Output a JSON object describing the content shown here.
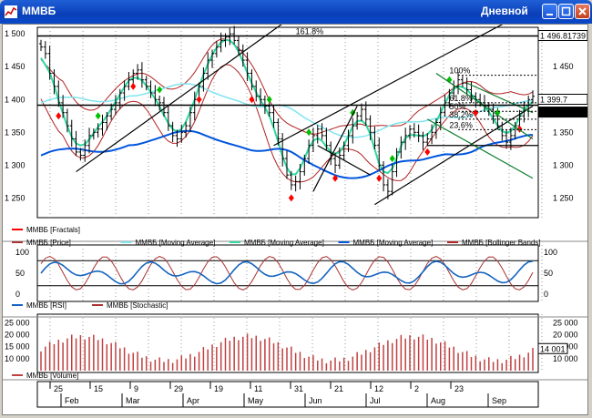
{
  "window": {
    "title": "ММВБ",
    "mode": "Дневной"
  },
  "colors": {
    "price": "#000000",
    "fractal": "#ff0000",
    "fractal_up": "#00c000",
    "ma_cyan": "#7fe5ef",
    "ma_green": "#2fd9a0",
    "ma_blue": "#0055dd",
    "bollinger": "#b22222",
    "stoch": "#a83232",
    "rsi": "#1565c0",
    "volume": "#c04040",
    "trend_black": "#000000",
    "channel_green": "#0b7d2b"
  },
  "chart_data": [
    {
      "type": "candlestick",
      "panel": "price",
      "ylim": [
        1220,
        1510
      ],
      "y_ticks": [
        {
          "label": "1 500",
          "value": 1500
        },
        {
          "label": "1 450",
          "value": 1450
        },
        {
          "label": "1 400",
          "value": 1400
        },
        {
          "label": "1 350",
          "value": 1350
        },
        {
          "label": "1 300",
          "value": 1300
        },
        {
          "label": "1 250",
          "value": 1250
        }
      ],
      "price_close": [
        1480,
        1470,
        1440,
        1420,
        1395,
        1380,
        1360,
        1340,
        1320,
        1315,
        1330,
        1345,
        1350,
        1355,
        1365,
        1375,
        1385,
        1395,
        1410,
        1420,
        1430,
        1440,
        1445,
        1430,
        1420,
        1410,
        1400,
        1395,
        1380,
        1360,
        1345,
        1340,
        1350,
        1360,
        1380,
        1400,
        1420,
        1440,
        1460,
        1470,
        1480,
        1490,
        1495,
        1500,
        1490,
        1475,
        1460,
        1440,
        1420,
        1405,
        1400,
        1390,
        1380,
        1365,
        1340,
        1310,
        1285,
        1270,
        1275,
        1290,
        1310,
        1330,
        1345,
        1355,
        1345,
        1330,
        1310,
        1300,
        1315,
        1330,
        1345,
        1360,
        1375,
        1385,
        1370,
        1350,
        1330,
        1300,
        1270,
        1260,
        1290,
        1320,
        1335,
        1345,
        1355,
        1350,
        1345,
        1335,
        1340,
        1350,
        1365,
        1380,
        1395,
        1410,
        1420,
        1430,
        1425,
        1415,
        1405,
        1400,
        1395,
        1390,
        1385,
        1375,
        1360,
        1345,
        1335,
        1345,
        1360,
        1375,
        1385,
        1400,
        1405
      ],
      "right_labels": [
        {
          "label": "1 496.81739",
          "value": 1496.8
        },
        {
          "label": "1 399.7",
          "value": 1399.7
        },
        {
          "label": "1 391.29851",
          "value": 1391.3
        }
      ],
      "levels": [
        {
          "label": "161.8%",
          "value": 1496.8
        },
        {
          "label": "100%",
          "value": 1437
        },
        {
          "label": "61.8%",
          "value": 1395
        },
        {
          "label": "50%",
          "value": 1382
        },
        {
          "label": "38.2%",
          "value": 1370
        },
        {
          "label": "23.6%",
          "value": 1354
        }
      ],
      "legend": [
        "ММВБ [Fractals]",
        "ММВБ [Price]",
        "ММВБ [Moving Average]",
        "ММВБ [Moving Average]",
        "ММВБ [Moving Average]",
        "ММВБ [Bollinger Bands]"
      ]
    },
    {
      "type": "line",
      "panel": "oscillators",
      "ylim": [
        0,
        100
      ],
      "y_ticks": [
        {
          "label": "100",
          "value": 100
        },
        {
          "label": "50",
          "value": 50
        },
        {
          "label": "0",
          "value": 0
        }
      ],
      "legend": [
        "ММВБ [RSI]",
        "ММВБ [Stochastic]"
      ]
    },
    {
      "type": "bar",
      "panel": "volume",
      "ylim": [
        5000,
        27000
      ],
      "y_ticks": [
        {
          "label": "25 000",
          "value": 25000
        },
        {
          "label": "20 000",
          "value": 20000
        },
        {
          "label": "15 000",
          "value": 15000
        },
        {
          "label": "10 000",
          "value": 10000
        }
      ],
      "last_value_label": "14 001",
      "last_value": 14001,
      "legend": [
        "ММВБ [Volume]"
      ]
    }
  ],
  "x_axis": {
    "day_ticks": [
      "25",
      "15",
      "9",
      "29",
      "19",
      "11",
      "31",
      "21",
      "12",
      "2",
      "23"
    ],
    "month_ticks": [
      "Feb",
      "Mar",
      "Apr",
      "May",
      "Jun",
      "Jul",
      "Aug",
      "Sep"
    ]
  }
}
